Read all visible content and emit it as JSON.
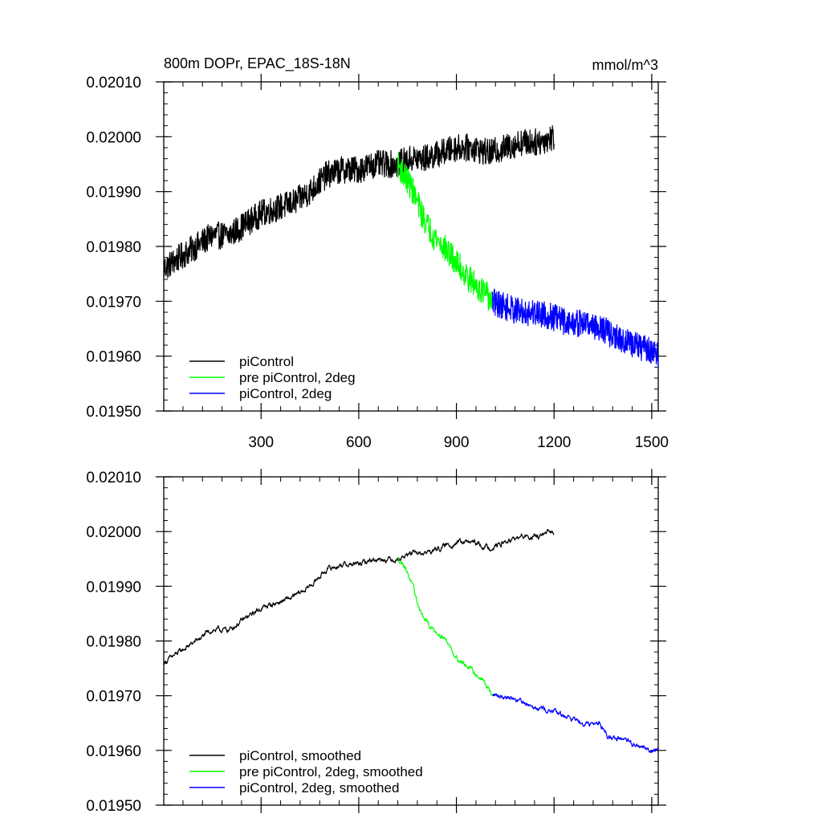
{
  "chart_data": [
    {
      "type": "line",
      "title": "800m DOPr, EPAC_18S-18N",
      "units": "mmol/m^3",
      "xlabel": "",
      "ylabel": "",
      "xlim": [
        1,
        1520
      ],
      "ylim": [
        0.0195,
        0.0201
      ],
      "x_ticks": [
        300,
        600,
        900,
        1200,
        1500
      ],
      "x_tick_labels": [
        "300",
        "600",
        "900",
        "1200",
        "1500"
      ],
      "y_ticks": [
        0.0195,
        0.0196,
        0.0197,
        0.0198,
        0.0199,
        0.02,
        0.0201
      ],
      "y_tick_labels": [
        "0.01950",
        "0.01960",
        "0.01970",
        "0.01980",
        "0.01990",
        "0.02000",
        "0.02010"
      ],
      "legend_position": "bottom-left",
      "series": [
        {
          "name": "piControl",
          "color": "#000000",
          "noise": 2.5e-05,
          "x": [
            1,
            50,
            100,
            150,
            200,
            250,
            300,
            350,
            400,
            450,
            500,
            550,
            600,
            650,
            700,
            720,
            760,
            800,
            850,
            900,
            950,
            1000,
            1050,
            1100,
            1150,
            1200
          ],
          "y": [
            0.01976,
            0.01978,
            0.0198,
            0.01982,
            0.01982,
            0.01984,
            0.01986,
            0.01987,
            0.01988,
            0.0199,
            0.01993,
            0.01994,
            0.01994,
            0.01995,
            0.01995,
            0.01995,
            0.01996,
            0.01996,
            0.01997,
            0.01998,
            0.01998,
            0.01997,
            0.01998,
            0.01999,
            0.01999,
            0.02
          ]
        },
        {
          "name": "pre piControl, 2deg",
          "color": "#00ff00",
          "noise": 2.5e-05,
          "x": [
            720,
            740,
            760,
            780,
            800,
            830,
            860,
            900,
            940,
            980,
            1010
          ],
          "y": [
            0.01995,
            0.01993,
            0.01991,
            0.01988,
            0.01985,
            0.01982,
            0.0198,
            0.01977,
            0.01974,
            0.01972,
            0.0197
          ]
        },
        {
          "name": "piControl, 2deg",
          "color": "#0000ff",
          "noise": 2.5e-05,
          "x": [
            1010,
            1050,
            1100,
            1150,
            1200,
            1250,
            1300,
            1350,
            1400,
            1450,
            1500,
            1520
          ],
          "y": [
            0.0197,
            0.01969,
            0.01968,
            0.01968,
            0.01967,
            0.01966,
            0.01966,
            0.01965,
            0.01963,
            0.01962,
            0.01961,
            0.0196
          ]
        }
      ]
    },
    {
      "type": "line",
      "title": "",
      "units": "",
      "xlabel": "",
      "ylabel": "",
      "xlim": [
        1,
        1520
      ],
      "ylim": [
        0.0195,
        0.0201
      ],
      "x_ticks": [
        300,
        600,
        900,
        1200,
        1500
      ],
      "x_tick_labels": [],
      "y_ticks": [
        0.0195,
        0.0196,
        0.0197,
        0.0198,
        0.0199,
        0.02,
        0.0201
      ],
      "y_tick_labels": [
        "0.01950",
        "0.01960",
        "0.01970",
        "0.01980",
        "0.01990",
        "0.02000",
        "0.02010"
      ],
      "legend_position": "bottom-left",
      "series": [
        {
          "name": "piControl, smoothed",
          "color": "#000000",
          "noise": 6e-06,
          "x": [
            1,
            50,
            100,
            150,
            200,
            250,
            300,
            350,
            400,
            450,
            500,
            550,
            600,
            650,
            700,
            720,
            760,
            800,
            850,
            900,
            950,
            1000,
            1050,
            1100,
            1150,
            1200
          ],
          "y": [
            0.01976,
            0.01978,
            0.0198,
            0.01982,
            0.01982,
            0.01984,
            0.01986,
            0.01987,
            0.01988,
            0.0199,
            0.01993,
            0.01994,
            0.01994,
            0.01995,
            0.01995,
            0.01995,
            0.01996,
            0.01996,
            0.01997,
            0.01998,
            0.01998,
            0.01997,
            0.01998,
            0.01999,
            0.01999,
            0.02
          ]
        },
        {
          "name": "pre piControl, 2deg, smoothed",
          "color": "#00ff00",
          "noise": 6e-06,
          "x": [
            720,
            740,
            760,
            780,
            800,
            830,
            860,
            900,
            940,
            980,
            1010
          ],
          "y": [
            0.01995,
            0.01994,
            0.01991,
            0.01987,
            0.01984,
            0.01982,
            0.01981,
            0.01977,
            0.01975,
            0.01973,
            0.0197
          ]
        },
        {
          "name": "piControl, 2deg, smoothed",
          "color": "#0000ff",
          "noise": 6e-06,
          "x": [
            1010,
            1050,
            1100,
            1150,
            1200,
            1250,
            1300,
            1340,
            1360,
            1400,
            1450,
            1500,
            1520
          ],
          "y": [
            0.0197,
            0.0197,
            0.01969,
            0.01968,
            0.01967,
            0.01966,
            0.01965,
            0.01965,
            0.01963,
            0.01962,
            0.01961,
            0.0196,
            0.0196
          ]
        }
      ]
    }
  ]
}
